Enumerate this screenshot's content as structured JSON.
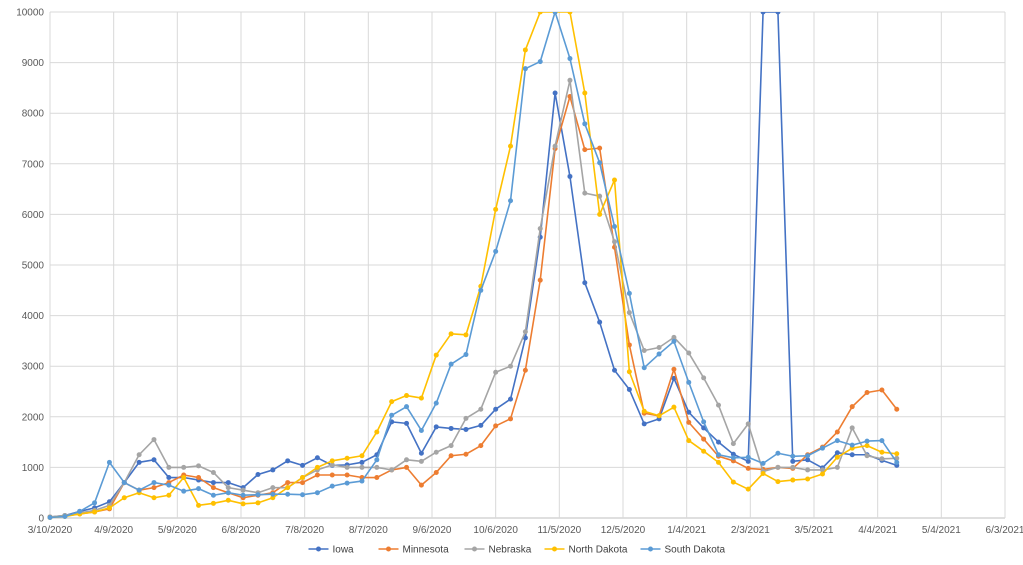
{
  "chart_data": {
    "type": "line",
    "title": "",
    "xlabel": "",
    "ylabel": "",
    "x_axis_type": "date",
    "xlim": [
      "2020-03-10",
      "2021-06-03"
    ],
    "ylim": [
      0,
      10000
    ],
    "y_ticks": [
      0,
      1000,
      2000,
      3000,
      4000,
      5000,
      6000,
      7000,
      8000,
      9000,
      10000
    ],
    "x_ticks": [
      {
        "date": "2020-03-10",
        "label": "3/10/2020"
      },
      {
        "date": "2020-04-09",
        "label": "4/9/2020"
      },
      {
        "date": "2020-05-09",
        "label": "5/9/2020"
      },
      {
        "date": "2020-06-08",
        "label": "6/8/2020"
      },
      {
        "date": "2020-07-08",
        "label": "7/8/2020"
      },
      {
        "date": "2020-08-07",
        "label": "8/7/2020"
      },
      {
        "date": "2020-09-06",
        "label": "9/6/2020"
      },
      {
        "date": "2020-10-06",
        "label": "10/6/2020"
      },
      {
        "date": "2020-11-05",
        "label": "11/5/2020"
      },
      {
        "date": "2020-12-05",
        "label": "12/5/2020"
      },
      {
        "date": "2021-01-04",
        "label": "1/4/2021"
      },
      {
        "date": "2021-02-03",
        "label": "2/3/2021"
      },
      {
        "date": "2021-03-05",
        "label": "3/5/2021"
      },
      {
        "date": "2021-04-04",
        "label": "4/4/2021"
      },
      {
        "date": "2021-05-04",
        "label": "5/4/2021"
      },
      {
        "date": "2021-06-03",
        "label": "6/3/2021"
      }
    ],
    "grid": true,
    "legend_position": "bottom",
    "dates": [
      "2020-03-10",
      "2020-03-17",
      "2020-03-24",
      "2020-03-31",
      "2020-04-07",
      "2020-04-14",
      "2020-04-21",
      "2020-04-28",
      "2020-05-05",
      "2020-05-12",
      "2020-05-19",
      "2020-05-26",
      "2020-06-02",
      "2020-06-09",
      "2020-06-16",
      "2020-06-23",
      "2020-06-30",
      "2020-07-07",
      "2020-07-14",
      "2020-07-21",
      "2020-07-28",
      "2020-08-04",
      "2020-08-11",
      "2020-08-18",
      "2020-08-25",
      "2020-09-01",
      "2020-09-08",
      "2020-09-15",
      "2020-09-22",
      "2020-09-29",
      "2020-10-06",
      "2020-10-13",
      "2020-10-20",
      "2020-10-27",
      "2020-11-03",
      "2020-11-10",
      "2020-11-17",
      "2020-11-24",
      "2020-12-01",
      "2020-12-08",
      "2020-12-15",
      "2020-12-22",
      "2020-12-29",
      "2021-01-05",
      "2021-01-12",
      "2021-01-19",
      "2021-01-26",
      "2021-02-02",
      "2021-02-09",
      "2021-02-16",
      "2021-02-23",
      "2021-03-02",
      "2021-03-09",
      "2021-03-16",
      "2021-03-23",
      "2021-03-30",
      "2021-04-06",
      "2021-04-13",
      "2021-04-20"
    ],
    "series": [
      {
        "name": "Iowa",
        "color": "#4472C4",
        "values": [
          20,
          50,
          130,
          200,
          320,
          700,
          1100,
          1150,
          800,
          800,
          750,
          700,
          700,
          600,
          860,
          950,
          1130,
          1040,
          1190,
          1040,
          1050,
          1100,
          1250,
          1900,
          1870,
          1280,
          1800,
          1770,
          1750,
          1830,
          2150,
          2350,
          3560,
          5550,
          8400,
          6750,
          4650,
          3870,
          2920,
          2540,
          1860,
          1960,
          2760,
          2090,
          1780,
          1500,
          1260,
          1120,
          10000,
          10000,
          1120,
          1150,
          990,
          1290,
          1250,
          1250,
          1140,
          1040,
          null
        ]
      },
      {
        "name": "Minnesota",
        "color": "#ED7D31",
        "values": [
          20,
          40,
          80,
          120,
          180,
          700,
          550,
          600,
          700,
          850,
          800,
          600,
          500,
          400,
          450,
          500,
          700,
          700,
          850,
          850,
          850,
          800,
          800,
          950,
          1000,
          650,
          900,
          1230,
          1260,
          1430,
          1820,
          1960,
          2920,
          4700,
          7300,
          8330,
          7280,
          7310,
          5350,
          3420,
          2070,
          2020,
          2940,
          1890,
          1560,
          1220,
          1130,
          980,
          960,
          1000,
          980,
          1250,
          1400,
          1700,
          2200,
          2480,
          2530,
          2150,
          null
        ]
      },
      {
        "name": "Nebraska",
        "color": "#A5A5A5",
        "values": [
          20,
          50,
          100,
          150,
          250,
          700,
          1250,
          1550,
          1000,
          1000,
          1030,
          900,
          600,
          550,
          500,
          600,
          600,
          800,
          950,
          1050,
          1000,
          1000,
          1000,
          950,
          1150,
          1120,
          1300,
          1430,
          1970,
          2150,
          2880,
          3000,
          3680,
          5720,
          7350,
          8650,
          6420,
          6360,
          5460,
          4060,
          3310,
          3370,
          3570,
          3260,
          2770,
          2230,
          1470,
          1860,
          920,
          1000,
          1000,
          950,
          950,
          1000,
          1780,
          1230,
          1170,
          1180,
          null
        ]
      },
      {
        "name": "North Dakota",
        "color": "#FFC000",
        "values": [
          10,
          30,
          80,
          120,
          200,
          400,
          500,
          400,
          450,
          800,
          250,
          290,
          350,
          280,
          300,
          400,
          600,
          800,
          1000,
          1130,
          1180,
          1230,
          1700,
          2300,
          2420,
          2370,
          3220,
          3640,
          3620,
          4580,
          6100,
          7350,
          9250,
          10000,
          10000,
          10000,
          8400,
          6000,
          6680,
          2890,
          2110,
          2020,
          2190,
          1530,
          1320,
          1100,
          710,
          570,
          880,
          720,
          750,
          770,
          870,
          1200,
          1380,
          1430,
          1300,
          1270,
          null
        ]
      },
      {
        "name": "South Dakota",
        "color": "#5B9BD5",
        "values": [
          10,
          30,
          130,
          300,
          1100,
          700,
          550,
          700,
          650,
          530,
          580,
          450,
          500,
          450,
          460,
          470,
          470,
          460,
          500,
          630,
          690,
          730,
          1150,
          2030,
          2200,
          1730,
          2270,
          3040,
          3230,
          4500,
          5270,
          6270,
          8880,
          9020,
          10000,
          9080,
          7790,
          7020,
          5760,
          4440,
          2970,
          3240,
          3490,
          2680,
          1900,
          1250,
          1190,
          1200,
          1080,
          1280,
          1220,
          1230,
          1380,
          1530,
          1440,
          1520,
          1530,
          1100,
          null
        ]
      }
    ]
  }
}
